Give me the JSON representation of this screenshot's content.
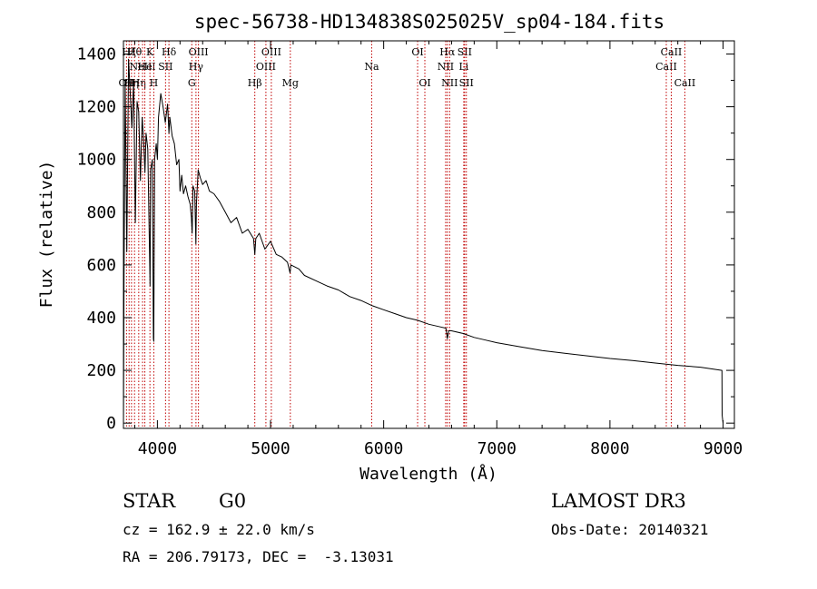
{
  "chart_data": {
    "type": "line",
    "title": "spec-56738-HD134838S025025V_sp04-184.fits",
    "xlabel": "Wavelength (Å)",
    "ylabel": "Flux (relative)",
    "xlim": [
      3700,
      9100
    ],
    "ylim": [
      -20,
      1450
    ],
    "xticks": [
      4000,
      5000,
      6000,
      7000,
      8000,
      9000
    ],
    "xtick_labels": [
      "4000",
      "5000",
      "6000",
      "7000",
      "8000",
      "9000"
    ],
    "yticks": [
      0,
      200,
      400,
      600,
      800,
      1000,
      1200,
      1400
    ],
    "ytick_labels": [
      "0",
      "200",
      "400",
      "600",
      "800",
      "1000",
      "1200",
      "1400"
    ],
    "grid": false,
    "series": [
      {
        "name": "flux",
        "x": [
          3700,
          3705,
          3715,
          3730,
          3745,
          3760,
          3775,
          3790,
          3805,
          3820,
          3835,
          3850,
          3865,
          3880,
          3890,
          3900,
          3915,
          3930,
          3935,
          3940,
          3955,
          3965,
          3968,
          3975,
          3990,
          4000,
          4010,
          4030,
          4050,
          4070,
          4090,
          4102,
          4110,
          4130,
          4150,
          4170,
          4190,
          4200,
          4215,
          4230,
          4250,
          4270,
          4290,
          4300,
          4307,
          4315,
          4330,
          4340,
          4345,
          4360,
          4380,
          4400,
          4430,
          4460,
          4500,
          4550,
          4600,
          4650,
          4700,
          4750,
          4800,
          4850,
          4861,
          4870,
          4900,
          4950,
          5000,
          5050,
          5100,
          5150,
          5172,
          5180,
          5250,
          5300,
          5400,
          5500,
          5600,
          5700,
          5800,
          5900,
          6000,
          6100,
          6200,
          6300,
          6400,
          6500,
          6550,
          6563,
          6575,
          6600,
          6700,
          6800,
          6900,
          7000,
          7200,
          7400,
          7600,
          7800,
          8000,
          8200,
          8400,
          8600,
          8800,
          8990,
          8992,
          9000
        ],
        "y": [
          -10,
          540,
          1300,
          650,
          1380,
          1250,
          1120,
          1300,
          760,
          1220,
          1180,
          920,
          1160,
          1060,
          950,
          1100,
          1040,
          650,
          520,
          960,
          1000,
          320,
          310,
          1000,
          1060,
          1000,
          1160,
          1250,
          1200,
          1140,
          1210,
          1100,
          1160,
          1090,
          1060,
          980,
          1000,
          880,
          940,
          870,
          900,
          860,
          830,
          780,
          720,
          900,
          880,
          680,
          830,
          960,
          930,
          905,
          920,
          880,
          870,
          840,
          800,
          760,
          780,
          720,
          735,
          700,
          640,
          700,
          720,
          660,
          690,
          640,
          630,
          610,
          570,
          600,
          585,
          560,
          540,
          520,
          505,
          480,
          465,
          445,
          430,
          415,
          400,
          390,
          375,
          365,
          360,
          320,
          350,
          350,
          340,
          325,
          315,
          305,
          290,
          275,
          265,
          255,
          245,
          237,
          228,
          219,
          212,
          200,
          30,
          0
        ]
      }
    ],
    "line_markers": [
      {
        "wavelength": 3727,
        "label": "OII",
        "row": 3
      },
      {
        "wavelength": 3750,
        "label": "Hξ",
        "row": 1
      },
      {
        "wavelength": 3771,
        "label": "Hη",
        "row": 3
      },
      {
        "wavelength": 3798,
        "label": "Hθ",
        "row": 1
      },
      {
        "wavelength": 3835,
        "label": "Hη",
        "row": 3
      },
      {
        "wavelength": 3869,
        "label": "NeIII",
        "row": 2
      },
      {
        "wavelength": 3889,
        "label": "He",
        "row": 2
      },
      {
        "wavelength": 3934,
        "label": "K",
        "row": 1
      },
      {
        "wavelength": 3968,
        "label": "H",
        "row": 3
      },
      {
        "wavelength": 4072,
        "label": "SII",
        "row": 2
      },
      {
        "wavelength": 4102,
        "label": "Hδ",
        "row": 1
      },
      {
        "wavelength": 4304,
        "label": "G",
        "row": 3
      },
      {
        "wavelength": 4341,
        "label": "Hγ",
        "row": 2
      },
      {
        "wavelength": 4363,
        "label": "OIII",
        "row": 1
      },
      {
        "wavelength": 4861,
        "label": "Hβ",
        "row": 3
      },
      {
        "wavelength": 4959,
        "label": "OIII",
        "row": 2
      },
      {
        "wavelength": 5007,
        "label": "OIII",
        "row": 1
      },
      {
        "wavelength": 5175,
        "label": "Mg",
        "row": 3
      },
      {
        "wavelength": 5894,
        "label": "Na",
        "row": 2
      },
      {
        "wavelength": 6300,
        "label": "OI",
        "row": 1
      },
      {
        "wavelength": 6364,
        "label": "OI",
        "row": 3
      },
      {
        "wavelength": 6548,
        "label": "NII",
        "row": 2
      },
      {
        "wavelength": 6563,
        "label": "Hα",
        "row": 1
      },
      {
        "wavelength": 6583,
        "label": "NII",
        "row": 3
      },
      {
        "wavelength": 6708,
        "label": "Li",
        "row": 2
      },
      {
        "wavelength": 6716,
        "label": "SII",
        "row": 1
      },
      {
        "wavelength": 6731,
        "label": "SII",
        "row": 3
      },
      {
        "wavelength": 8498,
        "label": "CaII",
        "row": 2
      },
      {
        "wavelength": 8542,
        "label": "CaII",
        "row": 1
      },
      {
        "wavelength": 8662,
        "label": "CaII",
        "row": 3
      }
    ]
  },
  "info": {
    "object_class": "STAR",
    "subclass": "G0",
    "survey": "LAMOST DR3",
    "redshift": "cz = 162.9 ± 22.0 km/s",
    "obs_date": "Obs-Date: 20140321",
    "coordinates": "RA = 206.79173, DEC =  -3.13031"
  },
  "colors": {
    "line_marker": "#c00000",
    "spectrum": "#000000",
    "axes": "#000000"
  }
}
